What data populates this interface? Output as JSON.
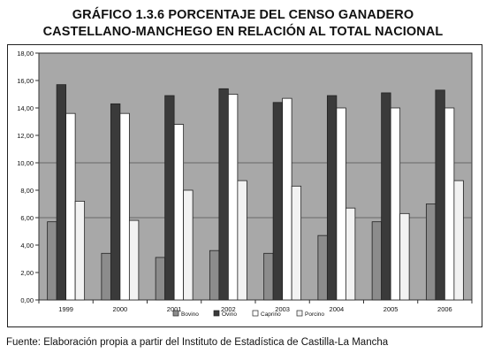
{
  "title_line1": "GRÁFICO 1.3.6 PORCENTAJE DEL CENSO GANADERO",
  "title_line2": "CASTELLANO-MANCHEGO EN RELACIÓN AL TOTAL NACIONAL",
  "source": "Fuente: Elaboración propia a partir del Instituto de Estadística de Castilla-La Mancha",
  "chart_data": {
    "type": "bar",
    "categories": [
      "1999",
      "2000",
      "2001",
      "2002",
      "2003",
      "2004",
      "2005",
      "2006"
    ],
    "series": [
      {
        "name": "Bovino",
        "color": "#8c8c8c",
        "values": [
          5.7,
          3.4,
          3.1,
          3.6,
          3.4,
          4.7,
          5.7,
          7.0
        ]
      },
      {
        "name": "Ovino",
        "color": "#3a3a3a",
        "values": [
          15.7,
          14.3,
          14.9,
          15.4,
          14.4,
          14.9,
          15.1,
          15.3
        ]
      },
      {
        "name": "Caprino",
        "color": "#ffffff",
        "values": [
          13.6,
          13.6,
          12.8,
          15.0,
          14.7,
          14.0,
          14.0,
          14.0
        ]
      },
      {
        "name": "Porcino",
        "color": "#f2f2f2",
        "values": [
          7.2,
          5.8,
          8.0,
          8.7,
          8.3,
          6.7,
          6.3,
          8.7
        ]
      }
    ],
    "yticks": [
      "0,00",
      "2,00",
      "4,00",
      "6,00",
      "8,00",
      "10,00",
      "12,00",
      "14,00",
      "16,00",
      "18,00"
    ],
    "ylim": [
      0,
      18
    ],
    "gridlines": [
      6,
      10
    ],
    "plot_background": "#a8a8a8",
    "legend_position": "bottom"
  }
}
